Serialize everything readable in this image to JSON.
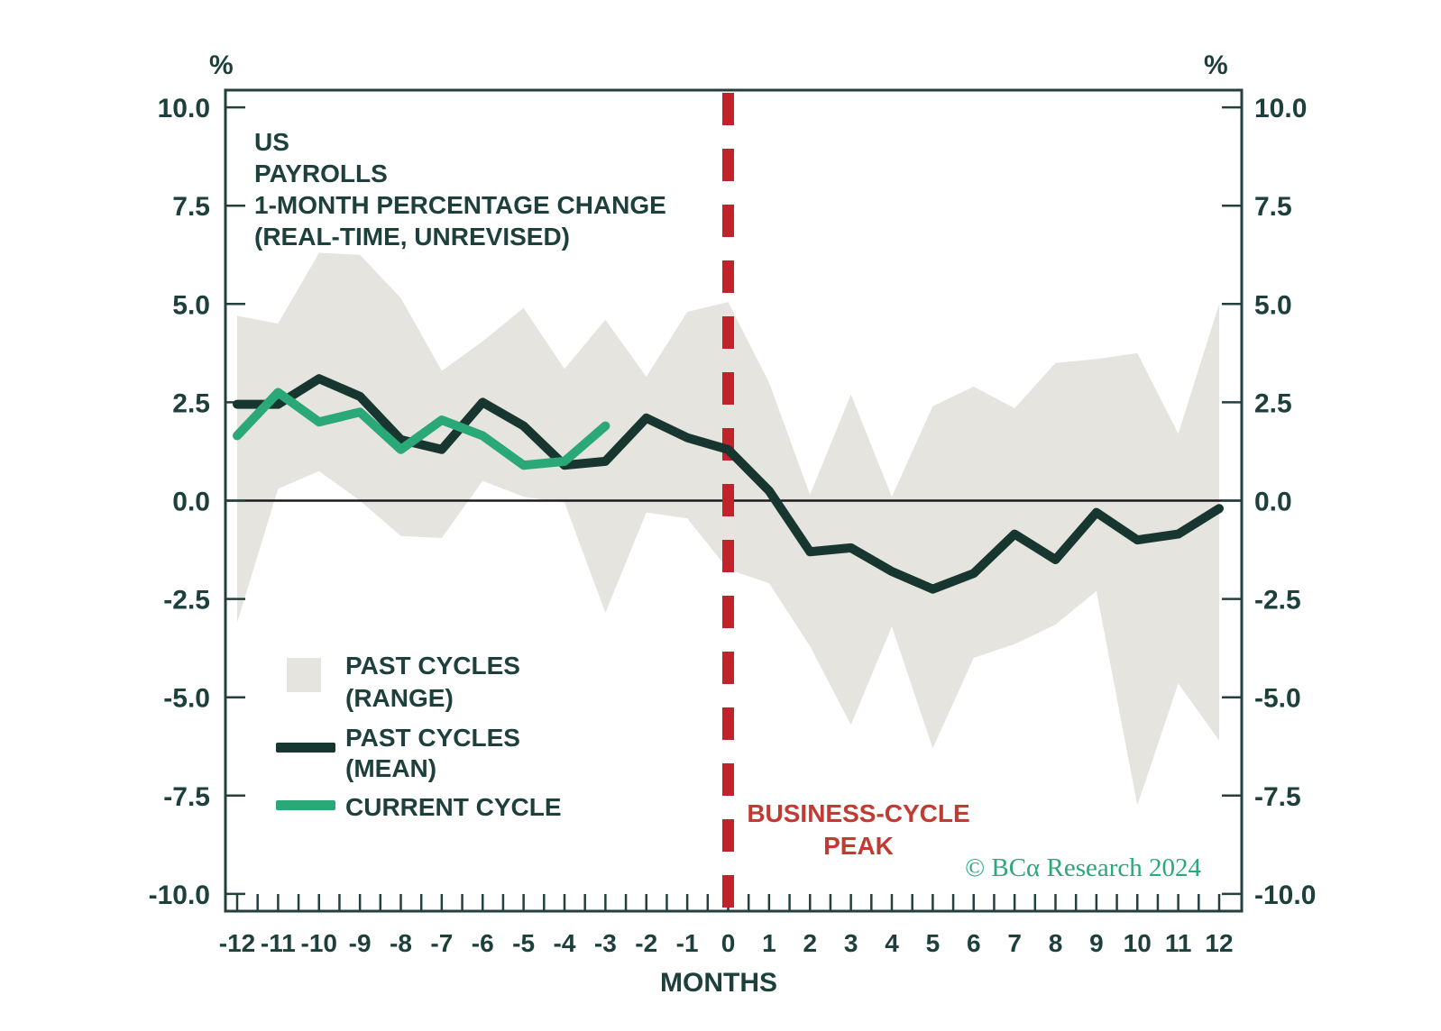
{
  "title": {
    "lines": [
      "US",
      "PAYROLLS",
      "1-MONTH PERCENTAGE CHANGE",
      "(REAL-TIME, UNREVISED)"
    ]
  },
  "axis": {
    "left_unit": "%",
    "right_unit": "%",
    "x_label": "MONTHS"
  },
  "legend": {
    "range_label_1": "PAST CYCLES",
    "range_label_2": "(RANGE)",
    "mean_label_1": "PAST CYCLES",
    "mean_label_2": "(MEAN)",
    "current_label": "CURRENT CYCLE"
  },
  "annotations": {
    "peak_line_1": "BUSINESS-CYCLE",
    "peak_line_2": "PEAK",
    "copyright": "© BCα Research 2024"
  },
  "colors": {
    "dark_line": "#17362f",
    "current_line": "#2aa878",
    "range_band": "#e6e4de",
    "peak_red": "#c2232a",
    "peak_text_red": "#c23a31",
    "text_dark": "#1e403c",
    "copyright_green": "#2aa878"
  },
  "chart_data": {
    "type": "line",
    "title": "US PAYROLLS 1-MONTH PERCENTAGE CHANGE (REAL-TIME, UNREVISED)",
    "xlabel": "MONTHS",
    "ylabel": "%",
    "x_range": [
      -12,
      12
    ],
    "y_range": [
      -10.5,
      10.5
    ],
    "grid": false,
    "legend_position": "lower-left",
    "y_tick_labels": [
      "10.0",
      "7.5",
      "5.0",
      "2.5",
      "0.0",
      "-2.5",
      "-5.0",
      "-7.5",
      "-10.0"
    ],
    "y_tick_values": [
      10,
      7.5,
      5,
      2.5,
      0,
      -2.5,
      -5,
      -7.5,
      -10
    ],
    "x_tick_labels": [
      "-12",
      "-11",
      "-10",
      "-9",
      "-8",
      "-7",
      "-6",
      "-5",
      "-4",
      "-3",
      "-2",
      "-1",
      "0",
      "1",
      "2",
      "3",
      "4",
      "5",
      "6",
      "7",
      "8",
      "9",
      "10",
      "11",
      "12"
    ],
    "x_minor_tick_step": 0.5,
    "months": [
      -12,
      -11,
      -10,
      -9,
      -8,
      -7,
      -6,
      -5,
      -4,
      -3,
      -2,
      -1,
      0,
      1,
      2,
      3,
      4,
      5,
      6,
      7,
      8,
      9,
      10,
      11,
      12
    ],
    "series": [
      {
        "name": "PAST CYCLES (RANGE)",
        "type": "band",
        "upper": [
          4.7,
          4.5,
          6.3,
          6.25,
          5.15,
          3.3,
          4.05,
          4.9,
          3.35,
          4.6,
          3.15,
          4.8,
          5.05,
          3.0,
          0.15,
          2.7,
          0.1,
          2.4,
          2.9,
          2.35,
          3.5,
          3.6,
          3.75,
          1.7,
          5.0
        ],
        "lower": [
          -3.1,
          0.3,
          0.75,
          0.0,
          -0.9,
          -0.95,
          0.5,
          0.1,
          -0.05,
          -2.85,
          -0.3,
          -0.45,
          -1.75,
          -2.1,
          -3.7,
          -5.7,
          -3.2,
          -6.3,
          -4.0,
          -3.65,
          -3.15,
          -2.3,
          -7.75,
          -4.65,
          -6.1
        ]
      },
      {
        "name": "PAST CYCLES (MEAN)",
        "type": "line",
        "values": [
          2.45,
          2.45,
          3.1,
          2.65,
          1.55,
          1.3,
          2.5,
          1.9,
          0.9,
          1.0,
          2.1,
          1.6,
          1.3,
          0.25,
          -1.3,
          -1.2,
          -1.8,
          -2.25,
          -1.85,
          -0.85,
          -1.5,
          -0.3,
          -1.0,
          -0.85,
          -0.2
        ]
      },
      {
        "name": "CURRENT CYCLE",
        "type": "line",
        "months": [
          -12,
          -11,
          -10,
          -9,
          -8,
          -7,
          -6,
          -5,
          -4,
          -3
        ],
        "values": [
          1.65,
          2.75,
          2.0,
          2.25,
          1.3,
          2.05,
          1.65,
          0.9,
          1.0,
          1.9
        ]
      }
    ],
    "annotations": {
      "vline_x": 0,
      "vline_style": "dashed-red",
      "vline_label": "BUSINESS-CYCLE PEAK"
    }
  }
}
